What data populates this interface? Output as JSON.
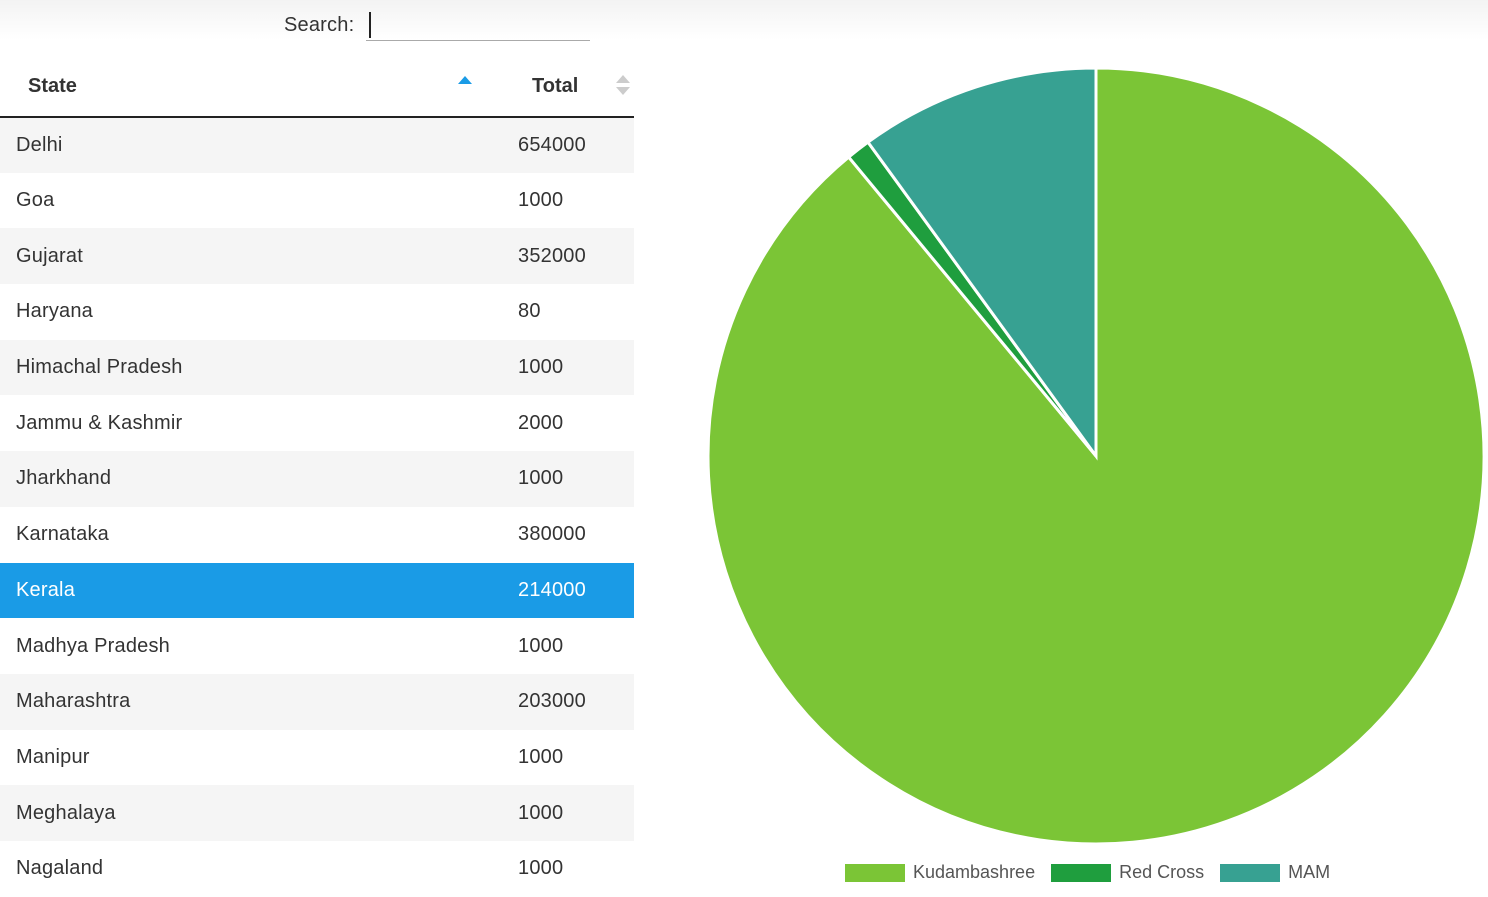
{
  "search": {
    "label": "Search:",
    "value": ""
  },
  "table": {
    "columns": [
      "State",
      "Total"
    ],
    "rows": [
      {
        "state": "Delhi",
        "total": "654000"
      },
      {
        "state": "Goa",
        "total": "1000"
      },
      {
        "state": "Gujarat",
        "total": "352000"
      },
      {
        "state": "Haryana",
        "total": "80"
      },
      {
        "state": "Himachal Pradesh",
        "total": "1000"
      },
      {
        "state": "Jammu & Kashmir",
        "total": "2000"
      },
      {
        "state": "Jharkhand",
        "total": "1000"
      },
      {
        "state": "Karnataka",
        "total": "380000"
      },
      {
        "state": "Kerala",
        "total": "214000"
      },
      {
        "state": "Madhya Pradesh",
        "total": "1000"
      },
      {
        "state": "Maharashtra",
        "total": "203000"
      },
      {
        "state": "Manipur",
        "total": "1000"
      },
      {
        "state": "Meghalaya",
        "total": "1000"
      },
      {
        "state": "Nagaland",
        "total": "1000"
      }
    ],
    "selected_state": "Kerala"
  },
  "chart_data": {
    "type": "pie",
    "categories": [
      "Kudambashree",
      "Red Cross",
      "MAM"
    ],
    "values": [
      89,
      1,
      10
    ],
    "colors": [
      "#7bc536",
      "#1f9e3e",
      "#37a192"
    ],
    "legend_position": "bottom"
  }
}
